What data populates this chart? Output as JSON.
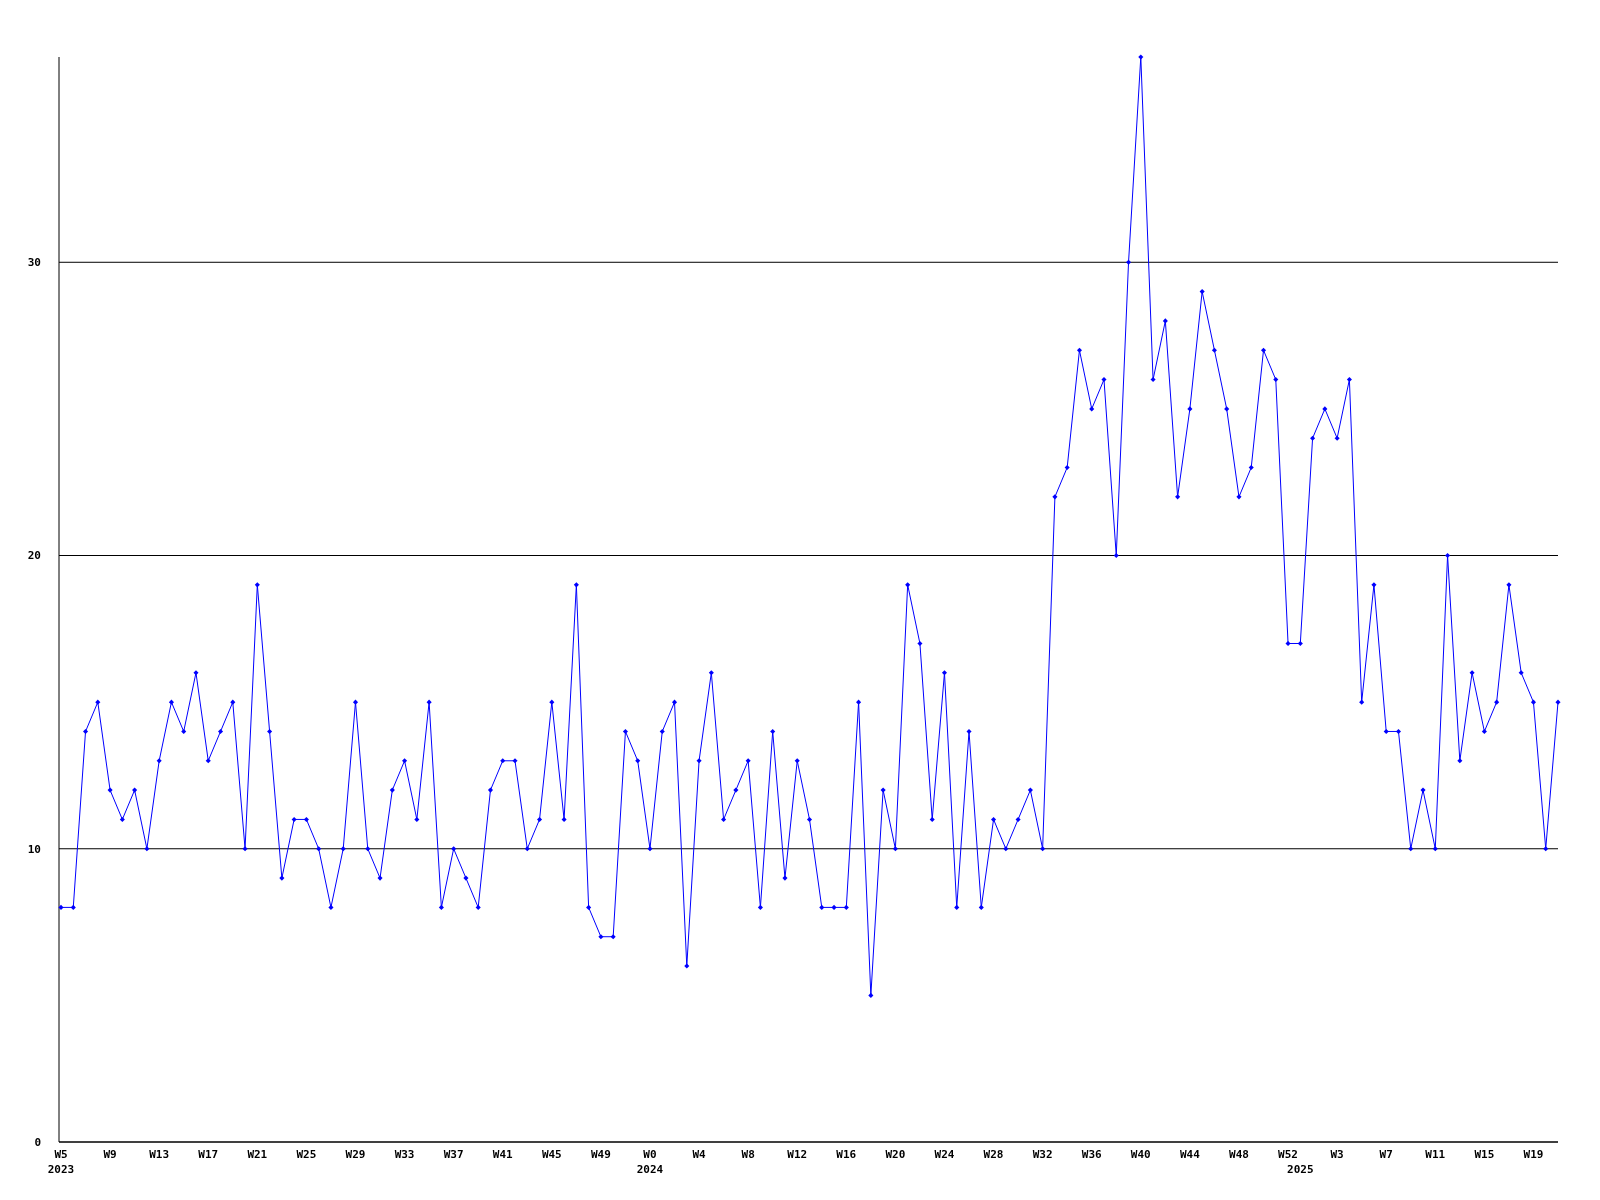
{
  "chart_data": {
    "type": "line",
    "categories": [
      "W5\n2023",
      null,
      null,
      null,
      "W9",
      null,
      null,
      null,
      "W13",
      null,
      null,
      null,
      "W17",
      null,
      null,
      null,
      "W21",
      null,
      null,
      null,
      "W25",
      null,
      null,
      null,
      "W29",
      null,
      null,
      null,
      "W33",
      null,
      null,
      null,
      "W37",
      null,
      null,
      null,
      "W41",
      null,
      null,
      null,
      "W45",
      null,
      null,
      null,
      "W49",
      null,
      null,
      null,
      "W0\n2024",
      null,
      null,
      null,
      "W4",
      null,
      null,
      null,
      "W8",
      null,
      null,
      null,
      "W12",
      null,
      null,
      null,
      "W16",
      null,
      null,
      null,
      "W20",
      null,
      null,
      null,
      "W24",
      null,
      null,
      null,
      "W28",
      null,
      null,
      null,
      "W32",
      null,
      null,
      null,
      "W36",
      null,
      null,
      null,
      "W40",
      null,
      null,
      null,
      "W44",
      null,
      null,
      null,
      "W48",
      null,
      null,
      null,
      "W52",
      "\n2025",
      null,
      null,
      "W3",
      null,
      null,
      null,
      "W7",
      null,
      null,
      null,
      "W11",
      null,
      null,
      null,
      "W15",
      null,
      null,
      null,
      "W19",
      null,
      null
    ],
    "series": [
      {
        "color": "#0000ff",
        "values": [
          8,
          8,
          14,
          15,
          12,
          11,
          12,
          10,
          13,
          15,
          14,
          16,
          13,
          14,
          15,
          10,
          19,
          14,
          9,
          11,
          11,
          10,
          8,
          10,
          15,
          10,
          9,
          12,
          13,
          11,
          15,
          8,
          10,
          9,
          8,
          12,
          13,
          13,
          10,
          11,
          15,
          11,
          19,
          8,
          7,
          7,
          14,
          13,
          10,
          14,
          15,
          6,
          13,
          16,
          11,
          12,
          13,
          8,
          14,
          9,
          13,
          11,
          8,
          8,
          8,
          15,
          5,
          12,
          10,
          19,
          17,
          11,
          16,
          8,
          14,
          8,
          11,
          10,
          11,
          12,
          10,
          22,
          23,
          27,
          25,
          26,
          20,
          30,
          37,
          26,
          28,
          22,
          25,
          29,
          27,
          25,
          22,
          23,
          27,
          26,
          17,
          17,
          24,
          25,
          24,
          26,
          15,
          19,
          14,
          14,
          10,
          12,
          10,
          20,
          13,
          16,
          14,
          15,
          19,
          16,
          15,
          10,
          15
        ]
      }
    ],
    "ylim": [
      0,
      37
    ],
    "yticks": [
      0,
      10,
      20,
      30
    ],
    "grid": "y",
    "marker": "diamond",
    "line_style": "solid"
  }
}
